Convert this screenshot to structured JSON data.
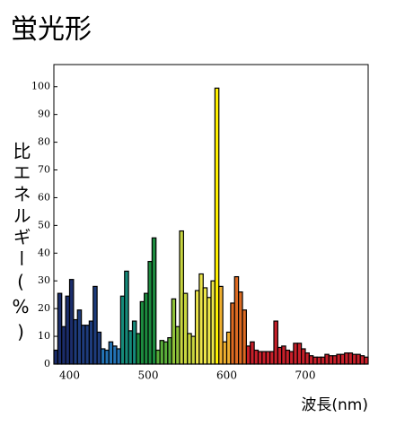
{
  "chart_data": {
    "type": "bar",
    "title": "蛍光形",
    "y_label": "比エネルギー(%)",
    "x_label": "波長(nm)",
    "bin_width": 5,
    "x": [
      380,
      385,
      390,
      395,
      400,
      405,
      410,
      415,
      420,
      425,
      430,
      435,
      440,
      445,
      450,
      455,
      460,
      465,
      470,
      475,
      480,
      485,
      490,
      495,
      500,
      505,
      510,
      515,
      520,
      525,
      530,
      535,
      540,
      545,
      550,
      555,
      560,
      565,
      570,
      575,
      580,
      585,
      590,
      595,
      600,
      605,
      610,
      615,
      620,
      625,
      630,
      635,
      640,
      645,
      650,
      655,
      660,
      665,
      670,
      675,
      680,
      685,
      690,
      695,
      700,
      705,
      710,
      715,
      720,
      725,
      730,
      735,
      740,
      745,
      750,
      755,
      760,
      765,
      770,
      775
    ],
    "values": [
      5,
      25.5,
      13.5,
      24.5,
      30.5,
      16,
      19.5,
      14,
      14,
      15.5,
      28,
      11.5,
      5.5,
      5,
      8,
      6.5,
      5.5,
      24.5,
      33.5,
      12,
      15.5,
      11,
      22.5,
      25.5,
      37,
      45.5,
      5,
      8.5,
      8,
      9.5,
      23.5,
      13.5,
      48,
      25.5,
      11,
      10,
      26.5,
      32.5,
      27.5,
      24,
      30,
      99.5,
      28,
      8,
      11.5,
      22,
      31.5,
      26,
      19.5,
      6.5,
      8,
      5,
      4.5,
      4.5,
      4.5,
      4.5,
      15.5,
      6,
      6.5,
      5,
      4.5,
      7.5,
      7.5,
      5.5,
      4,
      3,
      2.5,
      2.5,
      2.5,
      3.5,
      3,
      3,
      3.5,
      3.5,
      4,
      4,
      3.5,
      3.5,
      3,
      2.5
    ],
    "colors": [
      "#1b2d6b",
      "#1b2d6b",
      "#1b2d6b",
      "#1b2d6b",
      "#1b2d6b",
      "#1e3c7c",
      "#1e3c7c",
      "#1e3c7c",
      "#1e3c7c",
      "#1e3c7c",
      "#1e3c7c",
      "#1e3c7c",
      "#2373b5",
      "#2373b5",
      "#2373b5",
      "#2373b5",
      "#2373b5",
      "#168a7a",
      "#168a7a",
      "#168a7a",
      "#168a7a",
      "#1c8a3e",
      "#1c8a3e",
      "#1c8a3e",
      "#1c8a3e",
      "#1c8a3e",
      "#5aae3a",
      "#5aae3a",
      "#5aae3a",
      "#5aae3a",
      "#8fc23a",
      "#8fc23a",
      "#c8d640",
      "#c8d640",
      "#c8d640",
      "#c8d640",
      "#ece54a",
      "#ece54a",
      "#ece54a",
      "#ece54a",
      "#ece54a",
      "#fff000",
      "#f0b030",
      "#f0b030",
      "#f0b030",
      "#dd6a22",
      "#dd6a22",
      "#dd6a22",
      "#dd6a22",
      "#c8202a",
      "#c8202a",
      "#c8202a",
      "#c8202a",
      "#c8202a",
      "#c8202a",
      "#c8202a",
      "#c8202a",
      "#c8202a",
      "#c8202a",
      "#c8202a",
      "#c8202a",
      "#c8202a",
      "#c8202a",
      "#c8202a",
      "#c8202a",
      "#c8202a",
      "#c8202a",
      "#c8202a",
      "#c8202a",
      "#c8202a",
      "#c8202a",
      "#c8202a",
      "#c8202a",
      "#c8202a",
      "#c8202a",
      "#c8202a",
      "#c8202a",
      "#c8202a",
      "#c8202a",
      "#c8202a"
    ],
    "xlim": [
      380,
      780
    ],
    "ylim": [
      0,
      108
    ],
    "xticks": [
      400,
      500,
      600,
      700
    ],
    "yticks": [
      0,
      10,
      20,
      30,
      40,
      50,
      60,
      70,
      80,
      90,
      100
    ]
  }
}
